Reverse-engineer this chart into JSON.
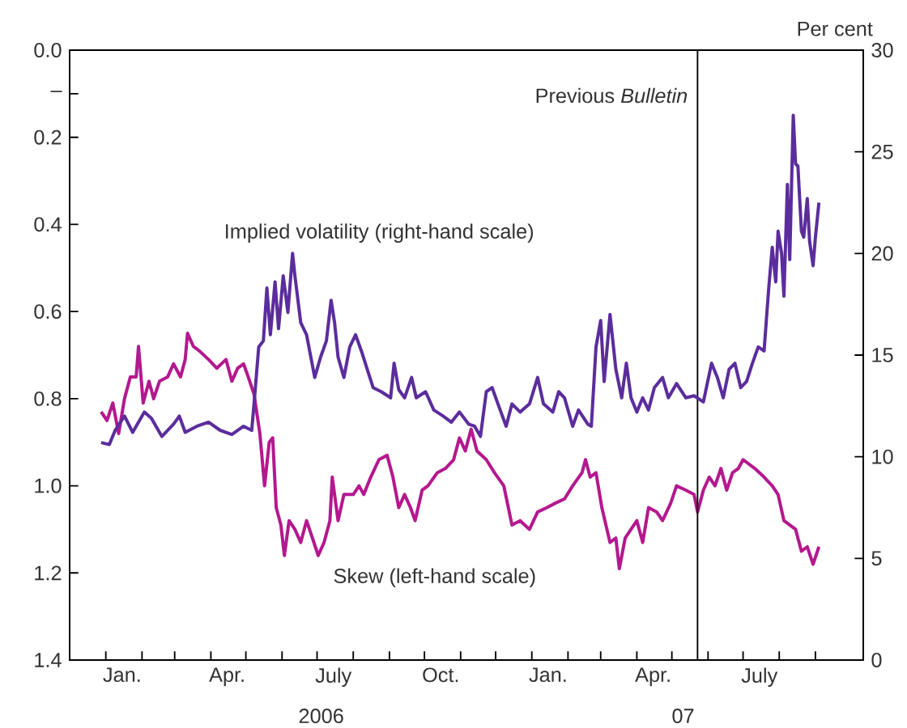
{
  "chart_data": {
    "type": "line",
    "xlim": [
      "2005-12-01",
      "2007-10-12"
    ],
    "xticks": [
      {
        "value": "2006-01-01",
        "label": null
      },
      {
        "value": "2006-02-01",
        "label": null
      },
      {
        "value": "2006-03-01",
        "label": null
      },
      {
        "value": "2006-04-01",
        "label": null
      },
      {
        "value": "2006-05-01",
        "label": null
      },
      {
        "value": "2006-06-01",
        "label": null
      },
      {
        "value": "2006-07-01",
        "label": null
      },
      {
        "value": "2006-08-01",
        "label": null
      },
      {
        "value": "2006-09-01",
        "label": null
      },
      {
        "value": "2006-10-01",
        "label": null
      },
      {
        "value": "2006-11-01",
        "label": null
      },
      {
        "value": "2006-12-01",
        "label": null
      },
      {
        "value": "2007-01-01",
        "label": null
      },
      {
        "value": "2007-02-01",
        "label": null
      },
      {
        "value": "2007-03-01",
        "label": null
      },
      {
        "value": "2007-04-01",
        "label": null
      },
      {
        "value": "2007-05-01",
        "label": null
      },
      {
        "value": "2007-06-01",
        "label": null
      },
      {
        "value": "2007-07-01",
        "label": null
      },
      {
        "value": "2007-08-01",
        "label": null
      },
      {
        "value": "2007-09-01",
        "label": null
      },
      {
        "value": "2006-01-15",
        "label": "Jan."
      },
      {
        "value": "2006-04-15",
        "label": "Apr."
      },
      {
        "value": "2006-07-15",
        "label": "July"
      },
      {
        "value": "2006-10-15",
        "label": "Oct."
      },
      {
        "value": "2007-01-15",
        "label": "Jan."
      },
      {
        "value": "2007-04-15",
        "label": "Apr."
      },
      {
        "value": "2007-07-15",
        "label": "July"
      }
    ],
    "ylim": [
      1.4,
      0.0
    ],
    "yticks": [
      {
        "value": 0,
        "label": "0.0"
      },
      {
        "value": 0.1,
        "label": "–"
      },
      0.2,
      0.4,
      0.6,
      0.8,
      {
        "value": 1,
        "label": "1.0"
      },
      1.2,
      1.4
    ],
    "y2lim": [
      0,
      30
    ],
    "y2ticks": [
      0,
      5,
      10,
      15,
      20,
      25,
      30
    ],
    "y2label": "Per cent",
    "annotations": [
      "2006",
      "07"
    ],
    "ref_lines": [
      {
        "axis": "x",
        "value": "2007-05-23",
        "label": "Previous *Bulletin*"
      }
    ],
    "series": [
      {
        "name": "Implied volatility (right-hand scale)",
        "color": "#5b2d9c",
        "axis": "y2",
        "x": [
          "2005-12-28",
          "2006-01-04",
          "2006-01-09",
          "2006-01-17",
          "2006-01-24",
          "2006-02-03",
          "2006-02-09",
          "2006-02-18",
          "2006-02-28",
          "2006-03-05",
          "2006-03-10",
          "2006-03-20",
          "2006-03-30",
          "2006-04-09",
          "2006-04-19",
          "2006-04-29",
          "2006-05-06",
          "2006-05-08",
          "2006-05-12",
          "2006-05-16",
          "2006-05-19",
          "2006-05-22",
          "2006-05-26",
          "2006-05-29",
          "2006-06-02",
          "2006-06-06",
          "2006-06-10",
          "2006-06-12",
          "2006-06-17",
          "2006-06-22",
          "2006-06-29",
          "2006-07-04",
          "2006-07-09",
          "2006-07-13",
          "2006-07-16",
          "2006-07-19",
          "2006-07-24",
          "2006-07-29",
          "2006-08-03",
          "2006-08-08",
          "2006-08-13",
          "2006-08-18",
          "2006-08-25",
          "2006-09-02",
          "2006-09-05",
          "2006-09-09",
          "2006-09-14",
          "2006-09-20",
          "2006-09-24",
          "2006-10-02",
          "2006-10-09",
          "2006-10-17",
          "2006-10-24",
          "2006-10-31",
          "2006-11-08",
          "2006-11-13",
          "2006-11-18",
          "2006-11-23",
          "2006-11-28",
          "2006-12-03",
          "2006-12-10",
          "2006-12-15",
          "2006-12-22",
          "2006-12-30",
          "2007-01-06",
          "2007-01-11",
          "2007-01-19",
          "2007-01-24",
          "2007-01-29",
          "2007-02-05",
          "2007-02-10",
          "2007-02-18",
          "2007-02-21",
          "2007-02-25",
          "2007-03-01",
          "2007-03-04",
          "2007-03-09",
          "2007-03-14",
          "2007-03-19",
          "2007-03-23",
          "2007-03-27",
          "2007-04-01",
          "2007-04-06",
          "2007-04-11",
          "2007-04-16",
          "2007-04-23",
          "2007-04-28",
          "2007-05-05",
          "2007-05-13",
          "2007-05-20",
          "2007-05-28",
          "2007-06-04",
          "2007-06-09",
          "2007-06-14",
          "2007-06-19",
          "2007-06-24",
          "2007-06-29",
          "2007-07-04",
          "2007-07-09",
          "2007-07-14",
          "2007-07-19",
          "2007-07-23",
          "2007-07-26",
          "2007-07-29",
          "2007-07-31",
          "2007-08-03",
          "2007-08-05",
          "2007-08-08",
          "2007-08-10",
          "2007-08-13",
          "2007-08-15",
          "2007-08-17",
          "2007-08-20",
          "2007-08-22",
          "2007-08-25",
          "2007-08-27",
          "2007-08-30",
          "2007-09-01",
          "2007-09-04"
        ],
        "values": [
          10.7,
          10.6,
          11.3,
          12.0,
          11.2,
          12.2,
          11.9,
          11.0,
          11.6,
          12.0,
          11.2,
          11.5,
          11.7,
          11.3,
          11.1,
          11.5,
          11.3,
          12.6,
          15.4,
          15.7,
          18.3,
          16.0,
          18.6,
          16.3,
          18.9,
          17.1,
          20.0,
          18.9,
          16.6,
          16.0,
          13.9,
          14.9,
          15.7,
          17.7,
          16.6,
          14.9,
          13.9,
          15.4,
          16.0,
          15.2,
          14.3,
          13.4,
          13.2,
          12.9,
          14.6,
          13.3,
          12.9,
          13.9,
          12.9,
          13.2,
          12.3,
          12.0,
          11.7,
          12.2,
          11.6,
          11.5,
          11.0,
          13.2,
          13.4,
          12.6,
          11.5,
          12.6,
          12.2,
          12.6,
          13.9,
          12.6,
          12.2,
          13.2,
          12.9,
          11.5,
          12.3,
          11.6,
          11.5,
          15.4,
          16.7,
          13.7,
          17.0,
          14.3,
          12.9,
          14.6,
          12.9,
          12.2,
          12.9,
          12.3,
          13.4,
          13.9,
          12.9,
          13.6,
          12.9,
          13.0,
          12.7,
          14.6,
          13.9,
          12.9,
          14.3,
          14.6,
          13.4,
          13.7,
          14.6,
          15.4,
          15.2,
          18.3,
          20.3,
          18.6,
          21.1,
          20.0,
          17.9,
          23.4,
          19.7,
          26.8,
          24.4,
          24.3,
          21.1,
          20.8,
          22.7,
          20.6,
          19.4,
          20.8,
          22.5
        ]
      },
      {
        "name": "Skew (left-hand scale)",
        "color": "#b4188e",
        "x": [
          "2005-12-28",
          "2006-01-02",
          "2006-01-07",
          "2006-01-12",
          "2006-01-17",
          "2006-01-22",
          "2006-01-27",
          "2006-01-29",
          "2006-02-02",
          "2006-02-07",
          "2006-02-11",
          "2006-02-16",
          "2006-02-23",
          "2006-02-28",
          "2006-03-06",
          "2006-03-10",
          "2006-03-12",
          "2006-03-17",
          "2006-03-22",
          "2006-03-30",
          "2006-04-06",
          "2006-04-14",
          "2006-04-19",
          "2006-04-24",
          "2006-04-29",
          "2006-05-03",
          "2006-05-08",
          "2006-05-13",
          "2006-05-17",
          "2006-05-21",
          "2006-05-24",
          "2006-05-27",
          "2006-05-31",
          "2006-06-03",
          "2006-06-07",
          "2006-06-12",
          "2006-06-17",
          "2006-06-22",
          "2006-06-27",
          "2006-07-02",
          "2006-07-07",
          "2006-07-12",
          "2006-07-14",
          "2006-07-19",
          "2006-07-24",
          "2006-08-01",
          "2006-08-06",
          "2006-08-10",
          "2006-08-16",
          "2006-08-23",
          "2006-08-30",
          "2006-09-04",
          "2006-09-09",
          "2006-09-14",
          "2006-09-19",
          "2006-09-23",
          "2006-09-29",
          "2006-10-04",
          "2006-10-12",
          "2006-10-19",
          "2006-10-26",
          "2006-10-31",
          "2006-11-05",
          "2006-11-10",
          "2006-11-15",
          "2006-11-23",
          "2006-11-30",
          "2006-12-08",
          "2006-12-15",
          "2006-12-22",
          "2006-12-30",
          "2007-01-06",
          "2007-01-14",
          "2007-01-21",
          "2007-01-29",
          "2007-02-05",
          "2007-02-13",
          "2007-02-16",
          "2007-02-20",
          "2007-02-25",
          "2007-03-02",
          "2007-03-09",
          "2007-03-14",
          "2007-03-17",
          "2007-03-22",
          "2007-03-27",
          "2007-04-01",
          "2007-04-06",
          "2007-04-11",
          "2007-04-18",
          "2007-04-23",
          "2007-04-30",
          "2007-05-05",
          "2007-05-13",
          "2007-05-20",
          "2007-05-23",
          "2007-05-28",
          "2007-06-02",
          "2007-06-07",
          "2007-06-12",
          "2007-06-17",
          "2007-06-22",
          "2007-06-27",
          "2007-07-01",
          "2007-07-06",
          "2007-07-11",
          "2007-07-19",
          "2007-07-26",
          "2007-07-31",
          "2007-08-05",
          "2007-08-10",
          "2007-08-15",
          "2007-08-20",
          "2007-08-25",
          "2007-08-30",
          "2007-09-04"
        ],
        "values": [
          0.83,
          0.85,
          0.81,
          0.88,
          0.8,
          0.75,
          0.75,
          0.68,
          0.81,
          0.76,
          0.8,
          0.76,
          0.75,
          0.72,
          0.75,
          0.71,
          0.65,
          0.68,
          0.69,
          0.71,
          0.73,
          0.71,
          0.76,
          0.73,
          0.72,
          0.75,
          0.79,
          0.88,
          1.0,
          0.9,
          0.89,
          1.05,
          1.09,
          1.16,
          1.08,
          1.1,
          1.13,
          1.08,
          1.12,
          1.16,
          1.13,
          1.08,
          0.98,
          1.08,
          1.02,
          1.02,
          1.0,
          1.02,
          0.98,
          0.94,
          0.93,
          0.98,
          1.05,
          1.02,
          1.05,
          1.08,
          1.01,
          1.0,
          0.97,
          0.96,
          0.94,
          0.89,
          0.92,
          0.87,
          0.92,
          0.94,
          0.97,
          1.0,
          1.09,
          1.08,
          1.1,
          1.06,
          1.05,
          1.04,
          1.03,
          1.0,
          0.97,
          0.94,
          0.98,
          0.97,
          1.05,
          1.13,
          1.12,
          1.19,
          1.12,
          1.1,
          1.08,
          1.13,
          1.05,
          1.06,
          1.08,
          1.04,
          1.0,
          1.01,
          1.02,
          1.06,
          1.01,
          0.98,
          1.0,
          0.96,
          1.01,
          0.97,
          0.96,
          0.94,
          0.95,
          0.96,
          0.98,
          1.0,
          1.02,
          1.08,
          1.09,
          1.1,
          1.15,
          1.14,
          1.18,
          1.14
        ]
      }
    ]
  }
}
